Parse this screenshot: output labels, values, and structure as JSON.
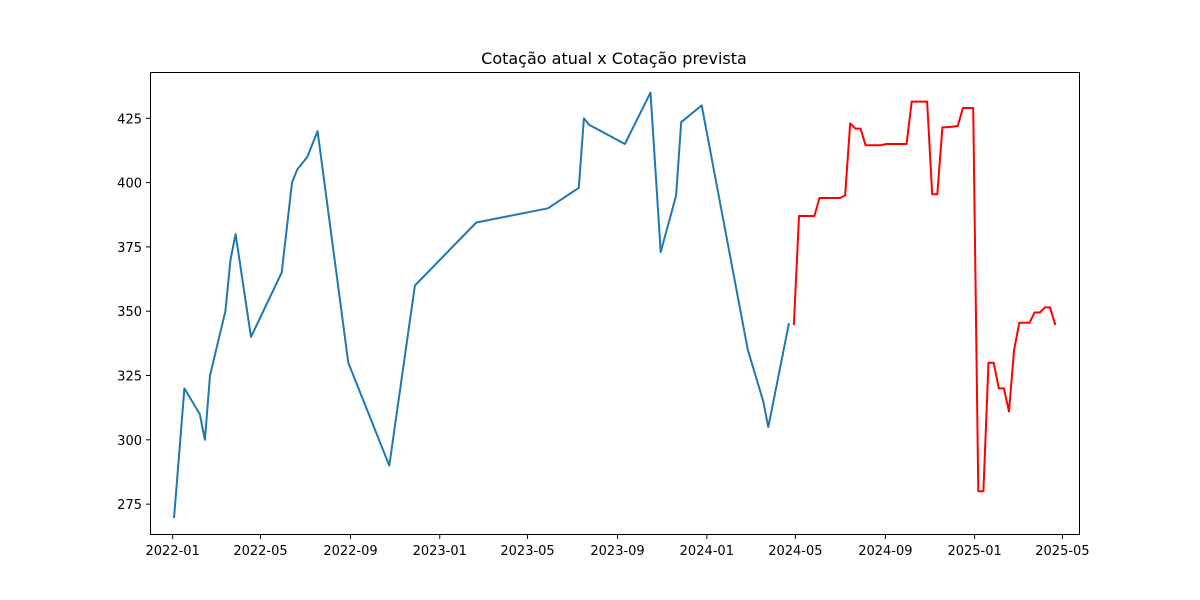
{
  "chart_data": {
    "type": "line",
    "title": "Cotação atual x Cotação prevista",
    "xlabel": "",
    "ylabel": "",
    "grid": false,
    "legend": "none",
    "xlim": [
      "2021-12-01",
      "2025-05-25"
    ],
    "ylim": [
      263,
      443
    ],
    "x_ticks": [
      "2022-01",
      "2022-05",
      "2022-09",
      "2023-01",
      "2023-05",
      "2023-09",
      "2024-01",
      "2024-05",
      "2024-09",
      "2025-01",
      "2025-05"
    ],
    "y_ticks": [
      275,
      300,
      325,
      350,
      375,
      400,
      425
    ],
    "series": [
      {
        "color": "#1f77b4",
        "points": [
          [
            "2022-01-03",
            270
          ],
          [
            "2022-01-17",
            320
          ],
          [
            "2022-02-07",
            310
          ],
          [
            "2022-02-14",
            300
          ],
          [
            "2022-02-21",
            325
          ],
          [
            "2022-03-14",
            350
          ],
          [
            "2022-03-21",
            370
          ],
          [
            "2022-03-28",
            380
          ],
          [
            "2022-04-18",
            340
          ],
          [
            "2022-05-30",
            365
          ],
          [
            "2022-06-13",
            400
          ],
          [
            "2022-06-20",
            405
          ],
          [
            "2022-07-04",
            410
          ],
          [
            "2022-07-18",
            420
          ],
          [
            "2022-08-29",
            330
          ],
          [
            "2022-10-24",
            290
          ],
          [
            "2022-11-28",
            360
          ],
          [
            "2023-02-20",
            384.5
          ],
          [
            "2023-05-29",
            390
          ],
          [
            "2023-07-10",
            398
          ],
          [
            "2023-07-17",
            425
          ],
          [
            "2023-07-24",
            422.5
          ],
          [
            "2023-09-11",
            415
          ],
          [
            "2023-10-16",
            435
          ],
          [
            "2023-10-30",
            373
          ],
          [
            "2023-11-20",
            395
          ],
          [
            "2023-11-27",
            423.5
          ],
          [
            "2023-12-25",
            430
          ],
          [
            "2024-02-26",
            335
          ],
          [
            "2024-03-18",
            315
          ],
          [
            "2024-03-25",
            305
          ],
          [
            "2024-04-22",
            345
          ]
        ]
      },
      {
        "color": "#ff0000",
        "points": [
          [
            "2024-04-29",
            345
          ],
          [
            "2024-05-06",
            387
          ],
          [
            "2024-05-27",
            387
          ],
          [
            "2024-06-03",
            394
          ],
          [
            "2024-06-24",
            394
          ],
          [
            "2024-07-01",
            394
          ],
          [
            "2024-07-08",
            395
          ],
          [
            "2024-07-15",
            423
          ],
          [
            "2024-07-22",
            421
          ],
          [
            "2024-07-29",
            421
          ],
          [
            "2024-08-05",
            414.5
          ],
          [
            "2024-08-26",
            414.5
          ],
          [
            "2024-09-02",
            415
          ],
          [
            "2024-09-23",
            415
          ],
          [
            "2024-09-30",
            415
          ],
          [
            "2024-10-07",
            431.5
          ],
          [
            "2024-10-28",
            431.5
          ],
          [
            "2024-11-04",
            395.5
          ],
          [
            "2024-11-11",
            395.5
          ],
          [
            "2024-11-18",
            421.5
          ],
          [
            "2024-11-25",
            421.5
          ],
          [
            "2024-12-09",
            422
          ],
          [
            "2024-12-16",
            429
          ],
          [
            "2024-12-30",
            429
          ],
          [
            "2025-01-06",
            280
          ],
          [
            "2025-01-13",
            280
          ],
          [
            "2025-01-20",
            330
          ],
          [
            "2025-01-27",
            330
          ],
          [
            "2025-02-03",
            320
          ],
          [
            "2025-02-10",
            320
          ],
          [
            "2025-02-17",
            311
          ],
          [
            "2025-02-24",
            335
          ],
          [
            "2025-03-03",
            345.5
          ],
          [
            "2025-03-17",
            345.5
          ],
          [
            "2025-03-24",
            349.5
          ],
          [
            "2025-03-31",
            349.5
          ],
          [
            "2025-04-07",
            351.5
          ],
          [
            "2025-04-14",
            351.5
          ],
          [
            "2025-04-21",
            345
          ]
        ]
      }
    ]
  }
}
